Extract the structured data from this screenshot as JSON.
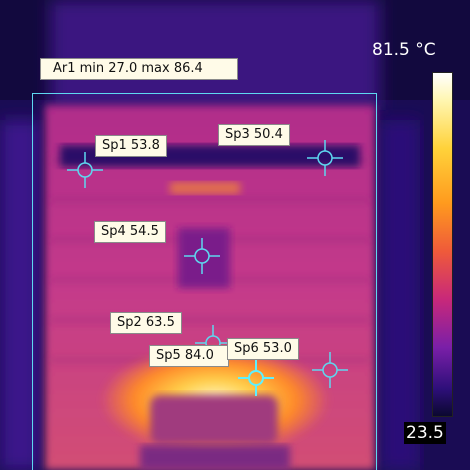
{
  "scale": {
    "max_label": "81.5 °C",
    "min_label": "23.5"
  },
  "area": {
    "label": "Ar1 min 27.0 max 86.4"
  },
  "spots": [
    {
      "label": "Sp1 53.8"
    },
    {
      "label": "Sp2 63.5"
    },
    {
      "label": "Sp3 50.4"
    },
    {
      "label": "Sp4 54.5"
    },
    {
      "label": "Sp5 84.0"
    },
    {
      "label": "Sp6 53.0"
    }
  ],
  "colors": {
    "marker": "#5ed8f0",
    "marker_active": "#5ef0ff",
    "label_bg": "#fffbe8"
  }
}
